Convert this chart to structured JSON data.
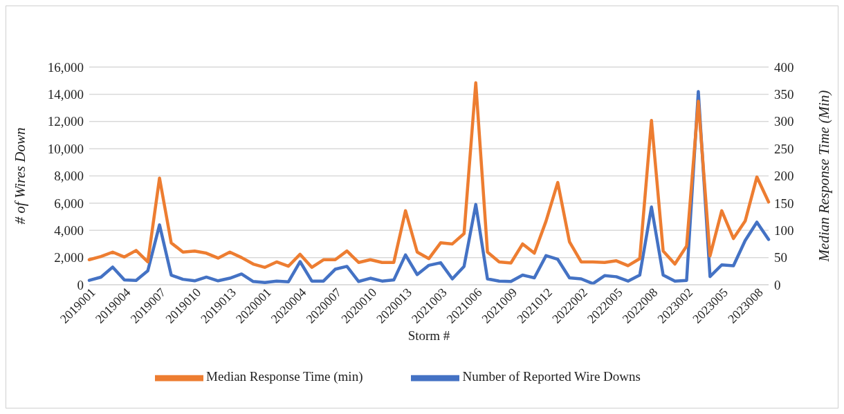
{
  "chart_data": {
    "type": "line",
    "xlabel": "Storm #",
    "ylabel": "# of Wires Down",
    "y2label": "Median Response Time (Min)",
    "categories": [
      "2019001",
      null,
      null,
      "2019004",
      null,
      null,
      "2019007",
      null,
      null,
      "2019010",
      null,
      null,
      "2019013",
      null,
      null,
      "2020001",
      null,
      null,
      "2020004",
      null,
      null,
      "2020007",
      null,
      null,
      "2020010",
      null,
      null,
      "2020013",
      null,
      null,
      "2021003",
      null,
      null,
      "2021006",
      null,
      null,
      "2021009",
      null,
      null,
      "2021012",
      null,
      null,
      "2022002",
      null,
      null,
      "2022005",
      null,
      null,
      "2022008",
      null,
      null,
      "2023002",
      null,
      null,
      "2023005",
      null,
      null,
      "2023008",
      null
    ],
    "series": [
      {
        "name": "Number of Reported Wire Downs",
        "color": "#4472c4",
        "values": [
          320,
          560,
          1300,
          350,
          320,
          1030,
          4400,
          710,
          400,
          290,
          560,
          290,
          480,
          790,
          240,
          160,
          270,
          210,
          1700,
          270,
          270,
          1140,
          1350,
          240,
          480,
          270,
          350,
          2190,
          750,
          1430,
          1620,
          430,
          1350,
          5900,
          430,
          270,
          240,
          710,
          510,
          2140,
          1870,
          510,
          430,
          80,
          670,
          590,
          270,
          710,
          5710,
          710,
          270,
          320,
          14200,
          600,
          1460,
          1400,
          3250,
          4600,
          3330
        ]
      },
      {
        "name": "Median Response Time (min)",
        "color": "#ed7d31",
        "axis": "y2",
        "values": [
          46,
          52,
          60,
          51,
          63,
          42,
          196,
          77,
          60,
          62,
          58,
          49,
          60,
          50,
          38,
          32,
          42,
          34,
          56,
          32,
          46,
          46,
          62,
          41,
          46,
          41,
          41,
          136,
          60,
          48,
          77,
          75,
          94,
          371,
          60,
          42,
          40,
          75,
          58,
          117,
          188,
          79,
          42,
          42,
          41,
          44,
          35,
          48,
          302,
          62,
          38,
          71,
          337,
          53,
          136,
          85,
          117,
          198,
          152
        ]
      }
    ],
    "ylim": [
      0,
      16000
    ],
    "yticks": [
      0,
      {
        "value": 2000,
        "label": "2,000"
      },
      {
        "value": 4000,
        "label": "4,000"
      },
      {
        "value": 6000,
        "label": "6,000"
      },
      {
        "value": 8000,
        "label": "8,000"
      },
      {
        "value": 10000,
        "label": "10,000"
      },
      {
        "value": 12000,
        "label": "12,000"
      },
      {
        "value": 14000,
        "label": "14,000"
      },
      {
        "value": 16000,
        "label": "16,000"
      }
    ],
    "y2lim": [
      0,
      400
    ],
    "y2ticks": [
      0,
      50,
      100,
      150,
      200,
      250,
      300,
      350,
      400
    ],
    "grid": "y",
    "legend": "bottom",
    "marker": "none",
    "line_style": "solid"
  }
}
